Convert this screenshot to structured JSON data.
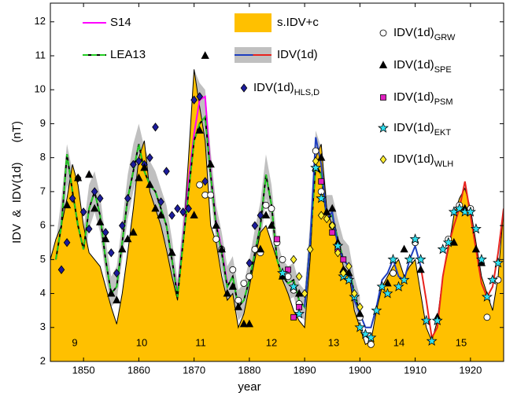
{
  "chart_data": {
    "type": "line",
    "x_label": "year",
    "y_label": "IDV  &  IDV(1d)      (nT)",
    "xlim": [
      1844,
      1926
    ],
    "ylim": [
      2,
      12.55
    ],
    "xticks": [
      1850,
      1860,
      1870,
      1880,
      1890,
      1900,
      1910,
      1920
    ],
    "yticks": [
      2,
      3,
      4,
      5,
      6,
      7,
      8,
      9,
      10,
      11,
      12
    ],
    "cycle_labels": [
      "9",
      "10",
      "11",
      "12",
      "13",
      "14",
      "15"
    ],
    "series": [
      {
        "name": "s.IDV+c",
        "kind": "area",
        "color": "#ffc000",
        "outline": "#000000",
        "x": [
          1844,
          1845,
          1846,
          1847,
          1848,
          1849,
          1850,
          1851,
          1852,
          1853,
          1854,
          1855,
          1856,
          1857,
          1858,
          1859,
          1860,
          1861,
          1862,
          1863,
          1864,
          1865,
          1866,
          1867,
          1868,
          1869,
          1870,
          1871,
          1872,
          1873,
          1874,
          1875,
          1876,
          1877,
          1878,
          1879,
          1880,
          1881,
          1882,
          1883,
          1884,
          1885,
          1886,
          1887,
          1888,
          1889,
          1890,
          1891,
          1892,
          1893,
          1894,
          1895,
          1896,
          1897,
          1898,
          1899,
          1900,
          1901,
          1902,
          1903,
          1904,
          1905,
          1906,
          1907,
          1908,
          1909,
          1910,
          1911,
          1912,
          1913,
          1914,
          1915,
          1916,
          1917,
          1918,
          1919,
          1920,
          1921,
          1922,
          1923,
          1924,
          1925,
          1926
        ],
        "values": [
          5.0,
          5.6,
          6.0,
          6.8,
          7.8,
          7.2,
          6.0,
          5.2,
          5.0,
          4.8,
          4.2,
          3.6,
          3.1,
          4.0,
          5.2,
          6.5,
          8.0,
          8.5,
          7.0,
          6.5,
          6.0,
          5.3,
          4.5,
          3.8,
          5.5,
          8.0,
          10.6,
          9.5,
          8.5,
          6.0,
          5.5,
          4.5,
          3.8,
          4.0,
          3.0,
          3.4,
          4.2,
          5.0,
          5.8,
          6.0,
          5.5,
          5.0,
          4.4,
          4.0,
          3.5,
          3.2,
          3.0,
          5.0,
          8.0,
          8.4,
          6.5,
          6.0,
          5.5,
          4.8,
          4.6,
          3.5,
          3.0,
          2.5,
          2.6,
          3.5,
          4.2,
          4.5,
          4.8,
          5.0,
          4.5,
          4.8,
          5.0,
          4.0,
          3.0,
          2.6,
          3.2,
          4.5,
          5.3,
          6.3,
          6.8,
          7.1,
          6.5,
          5.5,
          4.5,
          4.0,
          3.5,
          4.5,
          6.5
        ]
      },
      {
        "name": "S14",
        "kind": "line",
        "color": "#ff00ff",
        "x": [
          1866,
          1867,
          1868,
          1869,
          1870,
          1871,
          1872,
          1873,
          1874,
          1875,
          1876
        ],
        "values": [
          5.0,
          4.0,
          5.6,
          7.3,
          8.7,
          9.7,
          9.8,
          7.6,
          6.1,
          5.3,
          4.3
        ]
      },
      {
        "name": "LEA13",
        "kind": "line",
        "color": "#22cc22",
        "dash_color": "#000000",
        "dashed": true,
        "x": [
          1845,
          1846,
          1847,
          1848,
          1849,
          1850,
          1851,
          1852,
          1853,
          1854,
          1855,
          1856,
          1857,
          1858,
          1859,
          1860,
          1861,
          1862,
          1863,
          1864,
          1865,
          1866,
          1867,
          1868,
          1869,
          1870,
          1871,
          1872,
          1873,
          1874,
          1875,
          1876,
          1877,
          1878,
          1879,
          1880,
          1881,
          1882,
          1883,
          1884,
          1885,
          1886,
          1887,
          1888,
          1889,
          1890,
          1891,
          1892,
          1893,
          1894,
          1895,
          1896,
          1897,
          1898,
          1899,
          1900
        ],
        "values": [
          5.0,
          6.0,
          8.1,
          7.0,
          6.0,
          5.3,
          6.5,
          7.0,
          6.3,
          5.0,
          4.0,
          4.2,
          5.5,
          6.8,
          7.6,
          8.4,
          7.6,
          7.2,
          7.0,
          6.5,
          6.0,
          5.0,
          3.9,
          5.5,
          7.0,
          8.5,
          9.0,
          9.2,
          7.5,
          6.0,
          5.2,
          4.2,
          4.5,
          3.6,
          3.8,
          4.4,
          5.2,
          6.0,
          7.5,
          6.6,
          5.0,
          4.5,
          4.3,
          4.4,
          3.8,
          3.6,
          5.5,
          7.8,
          7.5,
          6.2,
          6.3,
          5.6,
          5.0,
          4.8,
          4.0,
          3.4
        ]
      },
      {
        "name": "IDV(1d)",
        "kind": "band-line",
        "band": {
          "color": "#c0c0c0",
          "x": [
            1845,
            1846,
            1847,
            1848,
            1849,
            1850,
            1851,
            1852,
            1853,
            1854,
            1855,
            1856,
            1857,
            1858,
            1859,
            1860,
            1861,
            1862,
            1863,
            1864,
            1865,
            1866,
            1867,
            1868,
            1869,
            1870,
            1871,
            1872,
            1873,
            1874,
            1875,
            1876,
            1877,
            1878,
            1879,
            1880,
            1881,
            1882,
            1883,
            1884,
            1885,
            1886,
            1887,
            1888,
            1889,
            1890,
            1891,
            1892,
            1893,
            1894,
            1895,
            1896,
            1897,
            1898,
            1899,
            1900
          ],
          "lower": [
            4.6,
            5.4,
            7.2,
            6.4,
            5.5,
            4.8,
            5.9,
            6.4,
            5.8,
            4.5,
            3.6,
            3.8,
            5.0,
            6.2,
            7.0,
            7.6,
            7.0,
            6.6,
            6.4,
            5.9,
            5.4,
            4.5,
            3.6,
            5.0,
            6.4,
            7.8,
            8.3,
            8.5,
            6.9,
            5.5,
            4.7,
            3.8,
            4.0,
            3.2,
            3.4,
            3.9,
            4.7,
            5.4,
            6.8,
            6.0,
            4.5,
            4.0,
            3.8,
            3.9,
            3.4,
            3.2,
            5.0,
            7.0,
            6.8,
            5.7,
            5.8,
            5.1,
            4.5,
            4.3,
            3.6,
            3.0
          ],
          "upper": [
            5.5,
            6.8,
            8.4,
            7.6,
            6.6,
            5.9,
            7.2,
            7.6,
            6.9,
            5.6,
            4.5,
            4.8,
            6.1,
            7.5,
            8.4,
            9.0,
            8.3,
            7.9,
            7.6,
            7.1,
            6.6,
            5.6,
            4.4,
            6.2,
            8.0,
            10.6,
            10.2,
            10.0,
            8.2,
            6.6,
            5.8,
            4.8,
            5.1,
            4.1,
            4.3,
            5.0,
            5.9,
            6.7,
            8.1,
            7.2,
            5.6,
            5.0,
            4.8,
            4.9,
            4.3,
            4.1,
            6.1,
            8.8,
            8.3,
            6.9,
            6.9,
            6.2,
            5.6,
            5.4,
            4.5,
            3.9
          ]
        },
        "segments": [
          {
            "color": "#1f3fbf",
            "x": [
              1890,
              1891,
              1892,
              1893,
              1894,
              1895,
              1896,
              1897,
              1898,
              1899,
              1900,
              1901,
              1902,
              1903,
              1904,
              1905,
              1906,
              1907,
              1908,
              1909,
              1910,
              1911
            ],
            "values": [
              3.6,
              5.5,
              8.6,
              7.8,
              6.2,
              6.4,
              5.4,
              5.0,
              4.8,
              3.8,
              3.4,
              3.0,
              3.0,
              3.6,
              4.4,
              4.6,
              5.0,
              4.5,
              4.4,
              5.0,
              5.4,
              4.8
            ]
          },
          {
            "color": "#e8231e",
            "x": [
              1911,
              1912,
              1913,
              1914,
              1915,
              1916,
              1917,
              1918,
              1919,
              1920,
              1921,
              1922,
              1923,
              1924,
              1925,
              1926
            ],
            "values": [
              4.8,
              3.8,
              2.7,
              3.0,
              4.5,
              5.4,
              6.0,
              6.5,
              7.3,
              6.3,
              5.3,
              4.3,
              3.9,
              4.2,
              5.2,
              6.5
            ]
          }
        ]
      },
      {
        "name": "IDV(1d)",
        "subscript": "HLS,D",
        "kind": "scatter",
        "marker": "diamond",
        "color": "#1c1c9c",
        "x": [
          1846,
          1847,
          1848,
          1849,
          1850,
          1851,
          1852,
          1853,
          1854,
          1855,
          1856,
          1857,
          1858,
          1859,
          1860,
          1861,
          1862,
          1863,
          1864,
          1865,
          1866,
          1867,
          1868,
          1869,
          1870,
          1871,
          1872,
          1880,
          1881,
          1882
        ],
        "values": [
          4.7,
          5.5,
          6.8,
          7.4,
          6.4,
          5.9,
          7.0,
          6.8,
          5.8,
          5.2,
          4.6,
          6.0,
          6.8,
          7.8,
          7.9,
          7.8,
          8.0,
          8.9,
          6.7,
          7.6,
          6.3,
          6.5,
          6.4,
          6.5,
          9.7,
          9.8,
          7.3,
          4.9,
          6.0,
          6.3
        ]
      },
      {
        "name": "IDV(1d)",
        "subscript": "GRW",
        "kind": "scatter",
        "marker": "circle",
        "color": "#ffffff",
        "x": [
          1871,
          1872,
          1873,
          1874,
          1875,
          1877,
          1878,
          1879,
          1880,
          1881,
          1882,
          1883,
          1884,
          1885,
          1886,
          1887,
          1888,
          1889,
          1892,
          1893,
          1895,
          1900,
          1902,
          1906,
          1910,
          1916,
          1918,
          1920,
          1923,
          1925
        ],
        "values": [
          7.2,
          6.9,
          6.9,
          5.6,
          5.3,
          4.7,
          3.8,
          4.3,
          4.5,
          5.3,
          5.2,
          6.6,
          6.5,
          5.5,
          5.0,
          4.5,
          4.1,
          3.7,
          8.2,
          7.0,
          6.0,
          3.3,
          2.5,
          4.6,
          5.5,
          5.6,
          6.6,
          6.5,
          3.3,
          4.4
        ]
      },
      {
        "name": "IDV(1d)",
        "subscript": "SPE",
        "kind": "scatter",
        "marker": "triangle",
        "color": "#000000",
        "x": [
          1847,
          1849,
          1851,
          1852,
          1853,
          1854,
          1855,
          1856,
          1857,
          1858,
          1859,
          1860,
          1861,
          1862,
          1863,
          1864,
          1866,
          1870,
          1871,
          1872,
          1873,
          1874,
          1875,
          1876,
          1877,
          1878,
          1879,
          1880,
          1882,
          1883,
          1884,
          1886,
          1889,
          1892,
          1893,
          1894,
          1895,
          1896,
          1897,
          1898,
          1900,
          1905,
          1908,
          1911,
          1914,
          1917,
          1919,
          1921,
          1922
        ],
        "values": [
          6.6,
          7.4,
          7.5,
          6.5,
          6.1,
          5.6,
          4.0,
          3.8,
          5.3,
          5.6,
          5.8,
          7.4,
          7.7,
          7.2,
          6.5,
          6.3,
          5.2,
          6.3,
          8.8,
          11.0,
          7.8,
          6.0,
          5.3,
          4.0,
          4.2,
          3.6,
          3.1,
          3.1,
          5.3,
          6.3,
          6.0,
          4.5,
          4.0,
          7.7,
          8.0,
          6.4,
          6.5,
          5.5,
          4.7,
          4.6,
          3.4,
          4.3,
          5.3,
          4.7,
          3.3,
          5.5,
          6.5,
          5.3,
          4.9
        ]
      },
      {
        "name": "IDV(1d)",
        "subscript": "PSM",
        "kind": "scatter",
        "marker": "square",
        "color": "#e020c0",
        "x": [
          1885,
          1887,
          1888,
          1889,
          1893,
          1895,
          1896,
          1897
        ],
        "values": [
          5.6,
          4.7,
          3.3,
          3.6,
          7.3,
          5.8,
          5.3,
          5.0
        ]
      },
      {
        "name": "IDV(1d)",
        "subscript": "EKT",
        "kind": "scatter",
        "marker": "star",
        "color": "#30e0f0",
        "x": [
          1886,
          1888,
          1889,
          1892,
          1893,
          1896,
          1897,
          1898,
          1899,
          1900,
          1901,
          1902,
          1903,
          1904,
          1905,
          1906,
          1907,
          1908,
          1909,
          1910,
          1911,
          1912,
          1913,
          1914,
          1915,
          1916,
          1917,
          1918,
          1919,
          1920,
          1921,
          1922,
          1923,
          1924,
          1925
        ],
        "values": [
          4.6,
          4.2,
          3.4,
          7.7,
          6.8,
          5.4,
          4.5,
          4.4,
          3.9,
          3.0,
          2.8,
          2.7,
          3.5,
          4.2,
          4.0,
          5.0,
          4.2,
          4.4,
          5.0,
          5.6,
          5.0,
          3.2,
          2.6,
          3.2,
          5.3,
          5.5,
          6.4,
          6.5,
          6.4,
          6.4,
          5.9,
          5.0,
          3.9,
          4.4,
          4.9
        ]
      },
      {
        "name": "IDV(1d)",
        "subscript": "WLH",
        "kind": "scatter",
        "marker": "diamond",
        "color": "#ffee30",
        "x": [
          1888,
          1889,
          1890,
          1891,
          1892,
          1893,
          1894,
          1895,
          1896,
          1897,
          1898,
          1899,
          1900
        ],
        "values": [
          5.0,
          4.5,
          4.0,
          5.3,
          7.9,
          6.3,
          6.2,
          6.0,
          5.2,
          4.6,
          4.8,
          4.0,
          3.6
        ]
      }
    ]
  }
}
